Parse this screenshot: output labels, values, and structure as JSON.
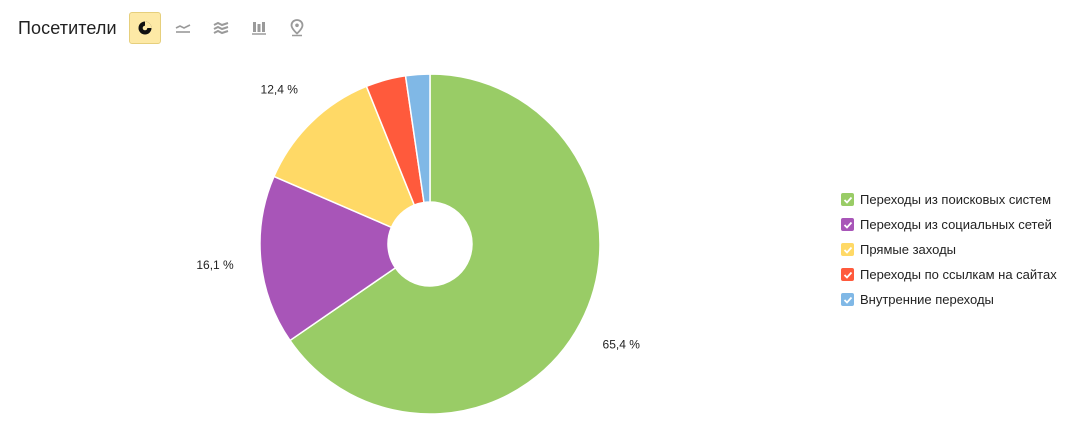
{
  "header": {
    "title": "Посетители",
    "view_buttons": [
      {
        "name": "pie-view-button",
        "icon": "pie-chart-icon",
        "active": true
      },
      {
        "name": "line-view-button",
        "icon": "line-chart-icon",
        "active": false
      },
      {
        "name": "area-view-button",
        "icon": "area-chart-icon",
        "active": false
      },
      {
        "name": "bar-view-button",
        "icon": "bar-chart-icon",
        "active": false
      },
      {
        "name": "map-view-button",
        "icon": "map-pin-icon",
        "active": false
      }
    ]
  },
  "chart_data": {
    "type": "pie",
    "donut": true,
    "start_angle_deg": 0,
    "categories": [
      "Переходы из поисковых систем",
      "Переходы из социальных сетей",
      "Прямые заходы",
      "Переходы по ссылкам на сайтах",
      "Внутренние переходы"
    ],
    "values": [
      65.4,
      16.1,
      12.4,
      3.8,
      2.3
    ],
    "labels": [
      "65,4 %",
      "16,1 %",
      "12,4 %",
      "",
      ""
    ],
    "colors": [
      "#99cc66",
      "#a855b8",
      "#ffd966",
      "#ff5a3c",
      "#80b8e6"
    ],
    "legend_position": "right"
  }
}
